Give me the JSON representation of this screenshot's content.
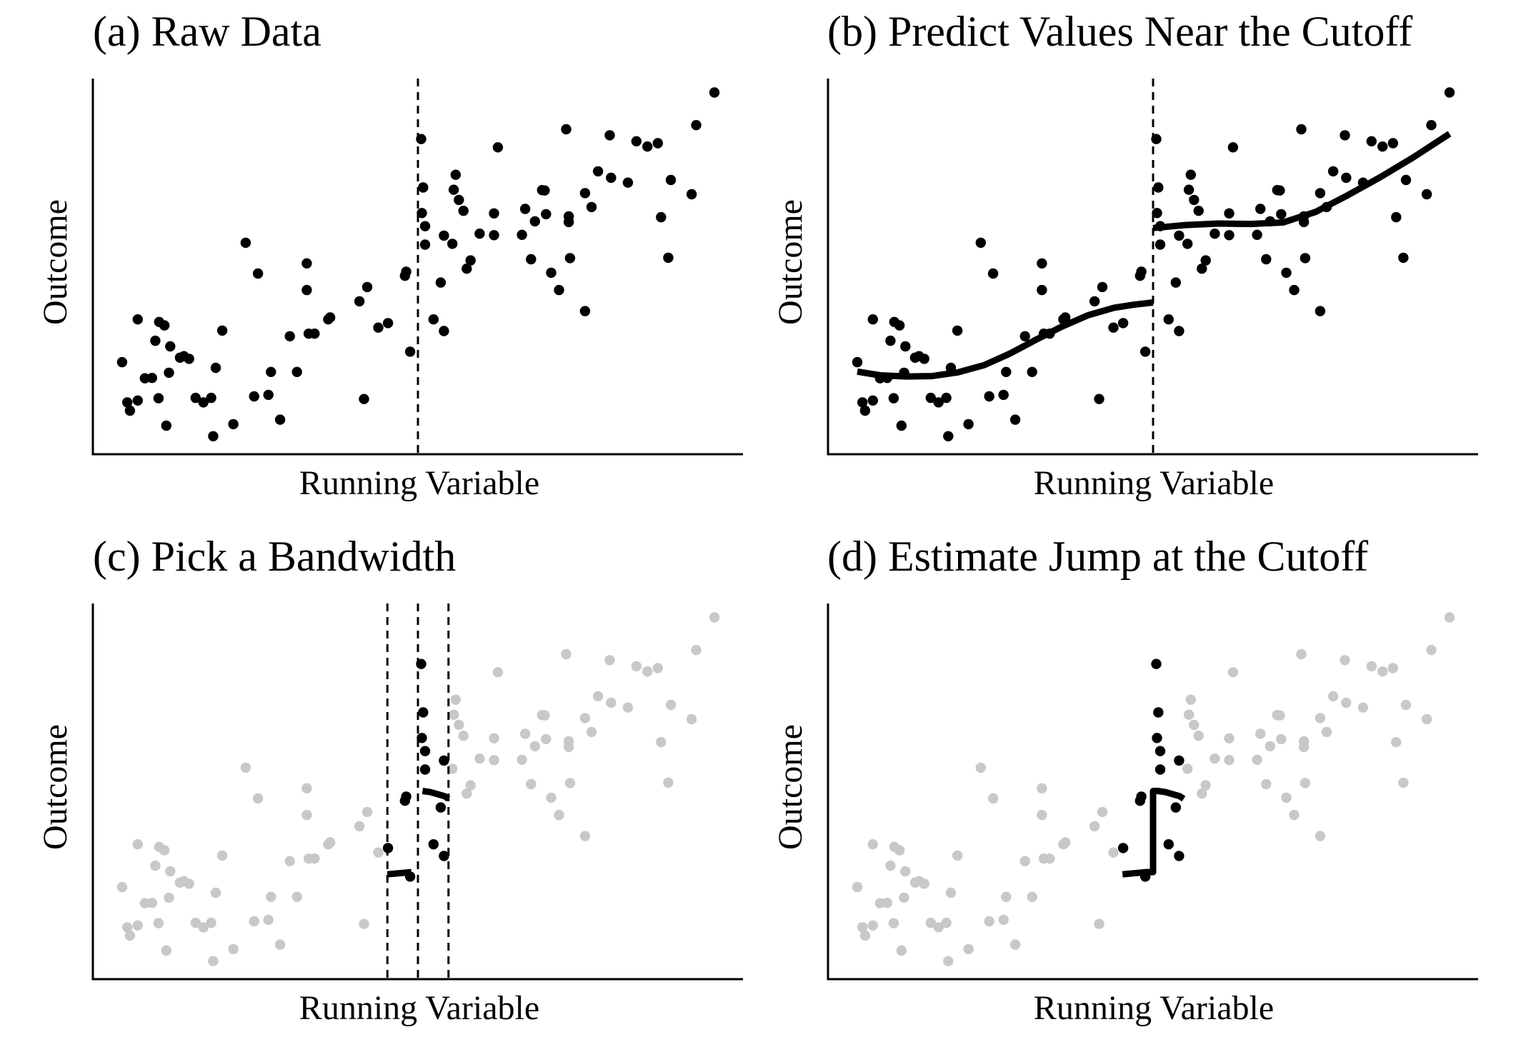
{
  "chart_data": [
    {
      "type": "scatter",
      "title": "(a) Raw Data",
      "xlabel": "Running Variable",
      "ylabel": "Outcome",
      "xlim": [
        0,
        1
      ],
      "ylim": [
        0,
        1
      ],
      "cutoff": 0.5,
      "show_cutoff": true,
      "bandwidth": null,
      "fit": "none",
      "highlight": "all",
      "grid": false
    },
    {
      "type": "scatter",
      "title": "(b) Predict Values Near the Cutoff",
      "xlabel": "Running Variable",
      "ylabel": "Outcome",
      "xlim": [
        0,
        1
      ],
      "ylim": [
        0,
        1
      ],
      "cutoff": 0.5,
      "show_cutoff": true,
      "bandwidth": null,
      "fit": "smooth",
      "highlight": "all",
      "grid": false
    },
    {
      "type": "scatter",
      "title": "(c) Pick a Bandwidth",
      "xlabel": "Running Variable",
      "ylabel": "Outcome",
      "xlim": [
        0,
        1
      ],
      "ylim": [
        0,
        1
      ],
      "cutoff": 0.5,
      "show_cutoff": true,
      "bandwidth": 0.047,
      "fit": "local-linear",
      "highlight": "within-bandwidth",
      "grid": false
    },
    {
      "type": "scatter",
      "title": "(d) Estimate Jump at the Cutoff",
      "xlabel": "Running Variable",
      "ylabel": "Outcome",
      "xlim": [
        0,
        1
      ],
      "ylim": [
        0,
        1
      ],
      "cutoff": 0.5,
      "show_cutoff": false,
      "bandwidth": 0.047,
      "fit": "local-linear-with-jump",
      "highlight": "within-bandwidth",
      "grid": false
    }
  ],
  "shared_points": [
    [
      0.045,
      0.245
    ],
    [
      0.053,
      0.138
    ],
    [
      0.057,
      0.116
    ],
    [
      0.069,
      0.143
    ],
    [
      0.069,
      0.359
    ],
    [
      0.08,
      0.202
    ],
    [
      0.091,
      0.203
    ],
    [
      0.096,
      0.302
    ],
    [
      0.101,
      0.149
    ],
    [
      0.102,
      0.352
    ],
    [
      0.11,
      0.343
    ],
    [
      0.113,
      0.076
    ],
    [
      0.117,
      0.217
    ],
    [
      0.119,
      0.287
    ],
    [
      0.134,
      0.257
    ],
    [
      0.14,
      0.261
    ],
    [
      0.148,
      0.254
    ],
    [
      0.158,
      0.15
    ],
    [
      0.17,
      0.138
    ],
    [
      0.182,
      0.15
    ],
    [
      0.185,
      0.048
    ],
    [
      0.189,
      0.23
    ],
    [
      0.199,
      0.329
    ],
    [
      0.216,
      0.08
    ],
    [
      0.235,
      0.563
    ],
    [
      0.248,
      0.154
    ],
    [
      0.254,
      0.481
    ],
    [
      0.27,
      0.158
    ],
    [
      0.274,
      0.219
    ],
    [
      0.288,
      0.092
    ],
    [
      0.303,
      0.314
    ],
    [
      0.314,
      0.219
    ],
    [
      0.329,
      0.508
    ],
    [
      0.329,
      0.437
    ],
    [
      0.332,
      0.321
    ],
    [
      0.341,
      0.321
    ],
    [
      0.362,
      0.359
    ],
    [
      0.365,
      0.364
    ],
    [
      0.41,
      0.407
    ],
    [
      0.417,
      0.147
    ],
    [
      0.422,
      0.445
    ],
    [
      0.439,
      0.337
    ],
    [
      0.454,
      0.349
    ],
    [
      0.48,
      0.475
    ],
    [
      0.482,
      0.486
    ],
    [
      0.488,
      0.273
    ],
    [
      0.505,
      0.839
    ],
    [
      0.506,
      0.642
    ],
    [
      0.508,
      0.71
    ],
    [
      0.511,
      0.607
    ],
    [
      0.511,
      0.558
    ],
    [
      0.524,
      0.359
    ],
    [
      0.535,
      0.457
    ],
    [
      0.54,
      0.328
    ],
    [
      0.54,
      0.582
    ],
    [
      0.553,
      0.56
    ],
    [
      0.555,
      0.704
    ],
    [
      0.558,
      0.744
    ],
    [
      0.563,
      0.677
    ],
    [
      0.57,
      0.648
    ],
    [
      0.575,
      0.494
    ],
    [
      0.581,
      0.516
    ],
    [
      0.595,
      0.587
    ],
    [
      0.617,
      0.583
    ],
    [
      0.617,
      0.641
    ],
    [
      0.623,
      0.817
    ],
    [
      0.66,
      0.584
    ],
    [
      0.665,
      0.653
    ],
    [
      0.674,
      0.519
    ],
    [
      0.68,
      0.62
    ],
    [
      0.691,
      0.703
    ],
    [
      0.695,
      0.702
    ],
    [
      0.697,
      0.639
    ],
    [
      0.705,
      0.483
    ],
    [
      0.717,
      0.437
    ],
    [
      0.728,
      0.865
    ],
    [
      0.732,
      0.633
    ],
    [
      0.732,
      0.618
    ],
    [
      0.734,
      0.522
    ],
    [
      0.757,
      0.381
    ],
    [
      0.757,
      0.695
    ],
    [
      0.767,
      0.658
    ],
    [
      0.777,
      0.753
    ],
    [
      0.795,
      0.849
    ],
    [
      0.797,
      0.736
    ],
    [
      0.823,
      0.723
    ],
    [
      0.836,
      0.833
    ],
    [
      0.853,
      0.819
    ],
    [
      0.869,
      0.828
    ],
    [
      0.874,
      0.631
    ],
    [
      0.885,
      0.523
    ],
    [
      0.889,
      0.73
    ],
    [
      0.921,
      0.692
    ],
    [
      0.928,
      0.876
    ],
    [
      0.956,
      0.963
    ]
  ],
  "smooth_fit_left": [
    [
      0.045,
      0.22
    ],
    [
      0.08,
      0.21
    ],
    [
      0.12,
      0.207
    ],
    [
      0.16,
      0.208
    ],
    [
      0.2,
      0.218
    ],
    [
      0.24,
      0.237
    ],
    [
      0.28,
      0.268
    ],
    [
      0.32,
      0.305
    ],
    [
      0.36,
      0.34
    ],
    [
      0.4,
      0.37
    ],
    [
      0.44,
      0.39
    ],
    [
      0.47,
      0.398
    ],
    [
      0.5,
      0.404
    ]
  ],
  "smooth_fit_right": [
    [
      0.5,
      0.602
    ],
    [
      0.55,
      0.61
    ],
    [
      0.6,
      0.614
    ],
    [
      0.65,
      0.613
    ],
    [
      0.7,
      0.617
    ],
    [
      0.75,
      0.645
    ],
    [
      0.8,
      0.69
    ],
    [
      0.85,
      0.738
    ],
    [
      0.9,
      0.79
    ],
    [
      0.956,
      0.853
    ]
  ],
  "local_fit_left": [
    [
      0.453,
      0.279
    ],
    [
      0.49,
      0.285
    ]
  ],
  "local_fit_right": [
    [
      0.507,
      0.501
    ],
    [
      0.519,
      0.498
    ],
    [
      0.541,
      0.487
    ],
    [
      0.547,
      0.48
    ]
  ]
}
